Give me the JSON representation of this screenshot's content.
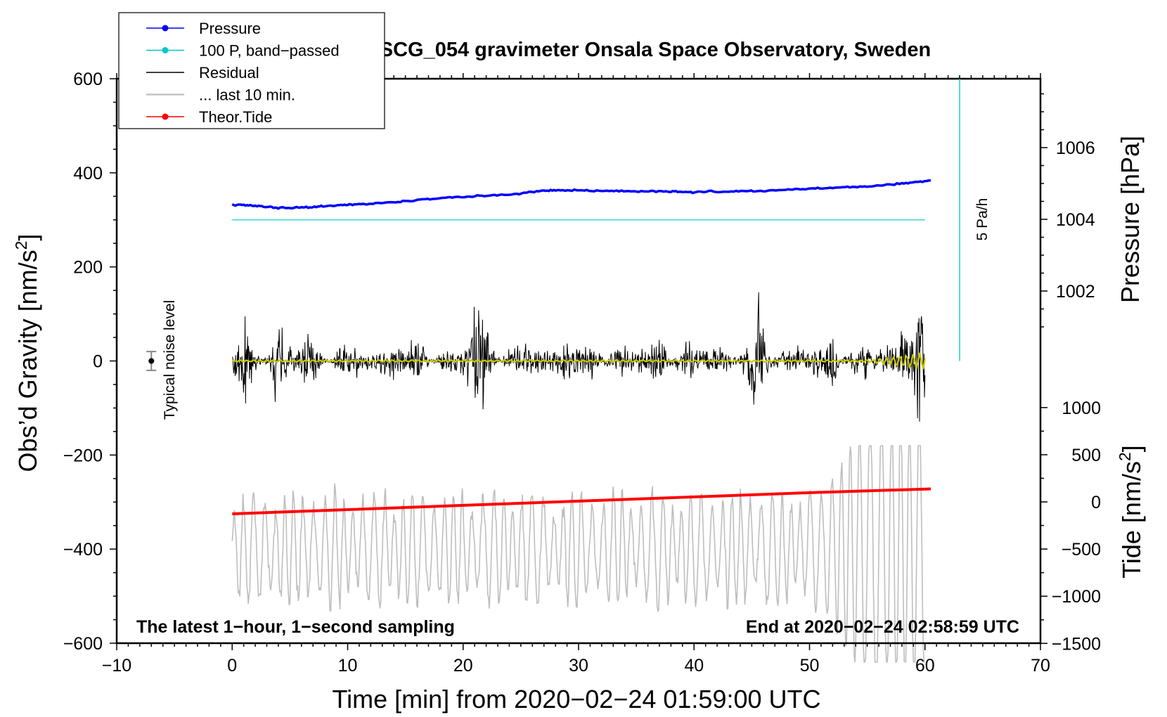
{
  "chart_data": {
    "type": "line",
    "title": "SCG_054 gravimeter Onsala Space Observatory, Sweden",
    "xlabel": "Time [min] from 2020−02−24 01:59:00 UTC",
    "ylabel_left": "Obs’d Gravity [nm/s",
    "ylabel_left_suffix": "]",
    "ylabel_pressure": "Pressure [hPa]",
    "ylabel_tide": "Tide [nm/s",
    "ylabel_tide_suffix": "]",
    "superscript": "2",
    "xlim": [
      -10,
      70
    ],
    "ylim": [
      -600,
      600
    ],
    "pressure_axis_range": [
      1000,
      1008
    ],
    "tide_axis_range": [
      -1500,
      1000
    ],
    "x_ticks": [
      {
        "value": -10,
        "label": "−10"
      },
      {
        "value": 0,
        "label": "0"
      },
      {
        "value": 10,
        "label": "10"
      },
      {
        "value": 20,
        "label": "20"
      },
      {
        "value": 30,
        "label": "30"
      },
      {
        "value": 40,
        "label": "40"
      },
      {
        "value": 50,
        "label": "50"
      },
      {
        "value": 60,
        "label": "60"
      },
      {
        "value": 70,
        "label": "70"
      }
    ],
    "y_ticks": [
      {
        "value": 600,
        "label": "600"
      },
      {
        "value": 400,
        "label": "400"
      },
      {
        "value": 200,
        "label": "200"
      },
      {
        "value": 0,
        "label": "0"
      },
      {
        "value": -200,
        "label": "−200"
      },
      {
        "value": -400,
        "label": "−400"
      },
      {
        "value": -600,
        "label": "−600"
      }
    ],
    "pressure_ticks": [
      {
        "value": 1006,
        "label": "1006"
      },
      {
        "value": 1004,
        "label": "1004"
      },
      {
        "value": 1002,
        "label": "1002"
      }
    ],
    "tide_ticks": [
      {
        "value": 1000,
        "label": "1000"
      },
      {
        "value": 500,
        "label": "500"
      },
      {
        "value": 0,
        "label": "0"
      },
      {
        "value": -500,
        "label": "−500"
      },
      {
        "value": -1000,
        "label": "−1000"
      },
      {
        "value": -1500,
        "label": "−1500"
      }
    ],
    "legend": [
      {
        "label": "Pressure",
        "color": "#0000ff",
        "marker": true
      },
      {
        "label": "100 P, band−passed",
        "color": "#00c8c8",
        "marker": true
      },
      {
        "label": "Residual",
        "color": "#000000",
        "marker": false
      },
      {
        "label": "... last 10 min.",
        "color": "#bebebe",
        "marker": false
      },
      {
        "label": "Theor.Tide",
        "color": "#ff0000",
        "marker": true
      }
    ],
    "legend_position": "top-left",
    "note_left": "The latest 1−hour, 1−second sampling",
    "note_right": "End at 2020−02−24 02:58:59 UTC",
    "noise_label": "Typical noise level",
    "noise_level": {
      "x": -7,
      "value": 0,
      "err": 20
    },
    "scale_bar_label": "5 Pa/h",
    "scale_bar": {
      "x": 63,
      "from": 0,
      "to": 600
    },
    "series": [
      {
        "name": "Pressure",
        "color": "#0000ff",
        "axis": "left",
        "points": [
          [
            0,
            332
          ],
          [
            2,
            330
          ],
          [
            4,
            326
          ],
          [
            6,
            326
          ],
          [
            8,
            329
          ],
          [
            10,
            332
          ],
          [
            12,
            334
          ],
          [
            15,
            340
          ],
          [
            18,
            346
          ],
          [
            21,
            350
          ],
          [
            24,
            354
          ],
          [
            27,
            362
          ],
          [
            29,
            363
          ],
          [
            32,
            362
          ],
          [
            35,
            361
          ],
          [
            38,
            360
          ],
          [
            40,
            359
          ],
          [
            43,
            360
          ],
          [
            46,
            362
          ],
          [
            49,
            365
          ],
          [
            52,
            368
          ],
          [
            55,
            372
          ],
          [
            58,
            377
          ],
          [
            60.5,
            384
          ]
        ]
      },
      {
        "name": "100 P, band-passed",
        "color": "#00c8c8",
        "axis": "left",
        "points": [
          [
            0,
            300
          ],
          [
            60,
            300
          ]
        ]
      },
      {
        "name": "Theor.Tide",
        "color": "#ff0000",
        "axis": "left",
        "points": [
          [
            0,
            -325
          ],
          [
            10,
            -316
          ],
          [
            20,
            -307
          ],
          [
            30,
            -298
          ],
          [
            40,
            -289
          ],
          [
            50,
            -280
          ],
          [
            60.5,
            -272
          ]
        ]
      },
      {
        "name": "Residual",
        "color": "#000000",
        "axis": "left",
        "generated": true,
        "note": "1-second residual signal, noise about 0 with typical amplitude 40-80 nm/s2 and peaks to 200 nm/s2",
        "x_range": [
          0,
          60
        ],
        "center": 0,
        "typical_amplitude": 70,
        "bursts": [
          [
            1,
            120
          ],
          [
            4,
            150
          ],
          [
            6.5,
            110
          ],
          [
            14,
            110
          ],
          [
            21,
            190
          ],
          [
            22,
            140
          ],
          [
            29,
            130
          ],
          [
            37,
            130
          ],
          [
            45.5,
            190
          ],
          [
            52,
            150
          ],
          [
            58.5,
            200
          ],
          [
            59.5,
            210
          ]
        ]
      },
      {
        "name": "Residual low-passed",
        "color": "#c8c800",
        "axis": "left",
        "generated": true,
        "x_range": [
          0,
          60
        ],
        "center": 0,
        "typical_amplitude": 2
      },
      {
        "name": "... last 10 min.",
        "color": "#bebebe",
        "axis": "left",
        "generated": true,
        "note": "Oscillating signal centred near -400 with amplitude about 80-150, increasing to about 300 near the end",
        "x_range": [
          0,
          60
        ],
        "center": -400,
        "typical_amplitude": 100,
        "end_amplitude": 300
      }
    ]
  }
}
